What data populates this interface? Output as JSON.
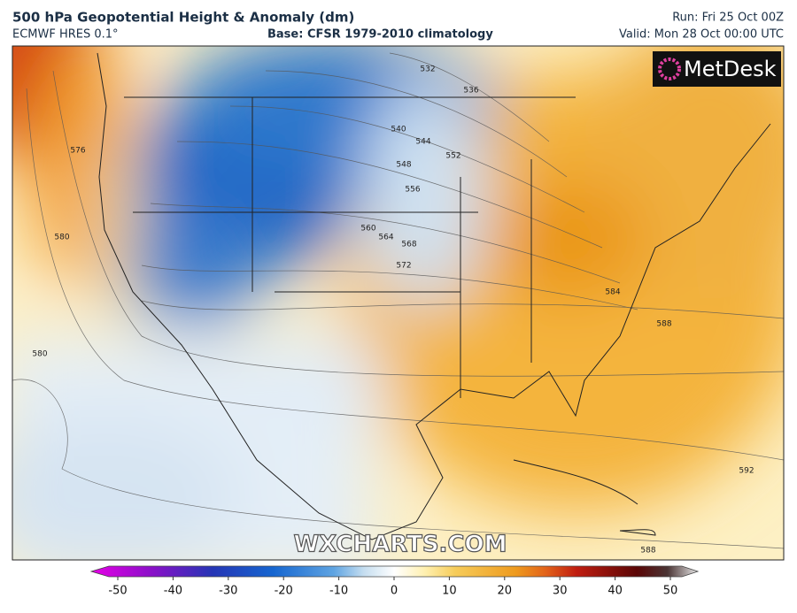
{
  "header": {
    "title": "500 hPa Geopotential Height & Anomaly (dm)",
    "model": "ECMWF HRES 0.1°",
    "base": "Base: CFSR 1979-2010 climatology",
    "run": "Run: Fri 25 Oct 00Z",
    "valid": "Valid: Mon 28 Oct 00:00 UTC"
  },
  "map": {
    "logo": "MetDesk",
    "watermark": "WXCHARTS.COM",
    "contour_labels": [
      532,
      536,
      540,
      544,
      548,
      552,
      556,
      560,
      564,
      568,
      572,
      576,
      580,
      580,
      584,
      588,
      592,
      588
    ]
  },
  "colorbar": {
    "range": [
      -50,
      50
    ],
    "ticks": [
      -50,
      -40,
      -30,
      -20,
      -10,
      0,
      10,
      20,
      30,
      40,
      50
    ]
  }
}
